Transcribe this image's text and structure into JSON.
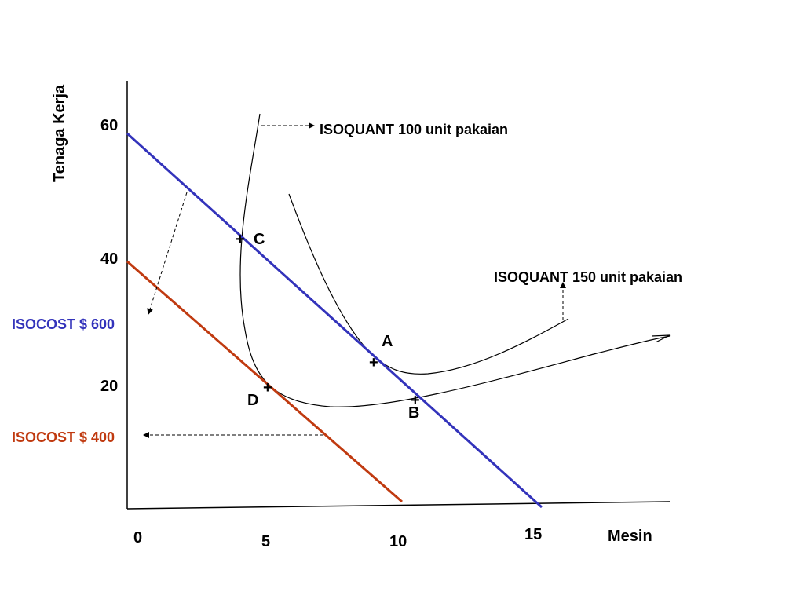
{
  "chart_data": {
    "type": "line",
    "title": "",
    "xlabel": "Mesin",
    "ylabel": "Tenaga Kerja",
    "x_ticks": [
      "0",
      "5",
      "10",
      "15"
    ],
    "y_ticks": [
      "60",
      "40",
      "20"
    ],
    "grid": false,
    "colors": {
      "axis": "#000000",
      "isocost_600": "#3333bb",
      "isocost_400": "#c03a10",
      "isoquant": "#000000"
    },
    "isocosts": [
      {
        "name": "ISOCOST $ 600",
        "color": "#3333bb",
        "x": [
          0,
          15
        ],
        "y": [
          60,
          0
        ]
      },
      {
        "name": "ISOCOST $ 400",
        "color": "#c03a10",
        "x": [
          0,
          10
        ],
        "y": [
          40,
          0
        ]
      }
    ],
    "isoquants": [
      {
        "name": "ISOQUANT 100 unit pakaian"
      },
      {
        "name": "ISOQUANT 150 unit pakaian"
      }
    ],
    "points": [
      {
        "label": "C",
        "x": 4.3,
        "y": 42
      },
      {
        "label": "A",
        "x": 9.2,
        "y": 23
      },
      {
        "label": "D",
        "x": 5.3,
        "y": 19
      },
      {
        "label": "B",
        "x": 10.6,
        "y": 16
      }
    ]
  }
}
